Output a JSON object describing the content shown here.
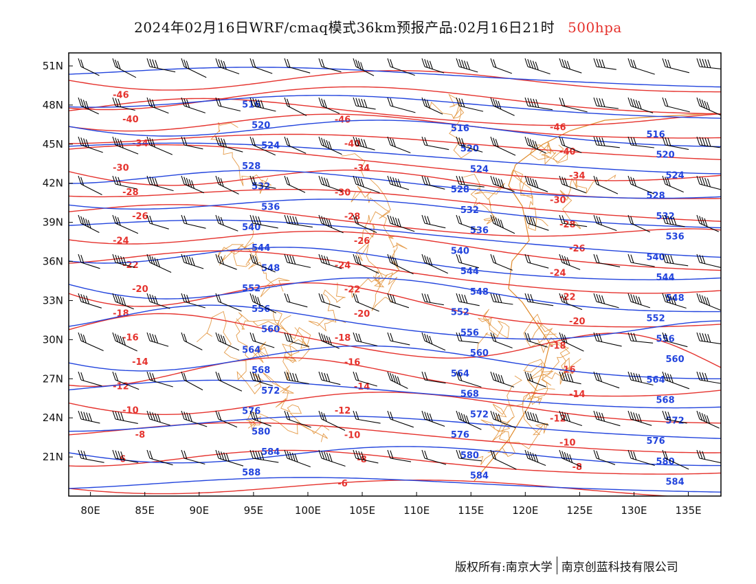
{
  "title": {
    "main": "2024年02月16日WRF/cmaq模式36km预报产品:02月16日21时",
    "level": "500hpa",
    "level_color": "#e5322d"
  },
  "axes": {
    "x_ticks": [
      "80E",
      "85E",
      "90E",
      "95E",
      "100E",
      "105E",
      "110E",
      "115E",
      "120E",
      "125E",
      "130E",
      "135E"
    ],
    "y_ticks": [
      "51N",
      "48N",
      "45N",
      "42N",
      "39N",
      "36N",
      "33N",
      "30N",
      "27N",
      "24N",
      "21N"
    ],
    "lon_range": [
      78,
      138
    ],
    "lat_range": [
      18,
      52
    ]
  },
  "colors": {
    "temperature": "#e5322d",
    "height": "#2244dd",
    "boundary": "#e08a2a",
    "wind": "#000000"
  },
  "temperature_labels": [
    "-46",
    "-40",
    "-34",
    "-30",
    "-28",
    "-26",
    "-24",
    "-22",
    "-20",
    "-18",
    "-16",
    "-14",
    "-12",
    "-10",
    "-8",
    "-6"
  ],
  "height_labels": [
    "516",
    "520",
    "524",
    "528",
    "532",
    "536",
    "540",
    "544",
    "548",
    "552",
    "556",
    "560",
    "564",
    "568",
    "572",
    "576",
    "580",
    "584",
    "588"
  ],
  "footer": {
    "left": "版权所有:南京大学",
    "right": "南京创蓝科技有限公司"
  }
}
